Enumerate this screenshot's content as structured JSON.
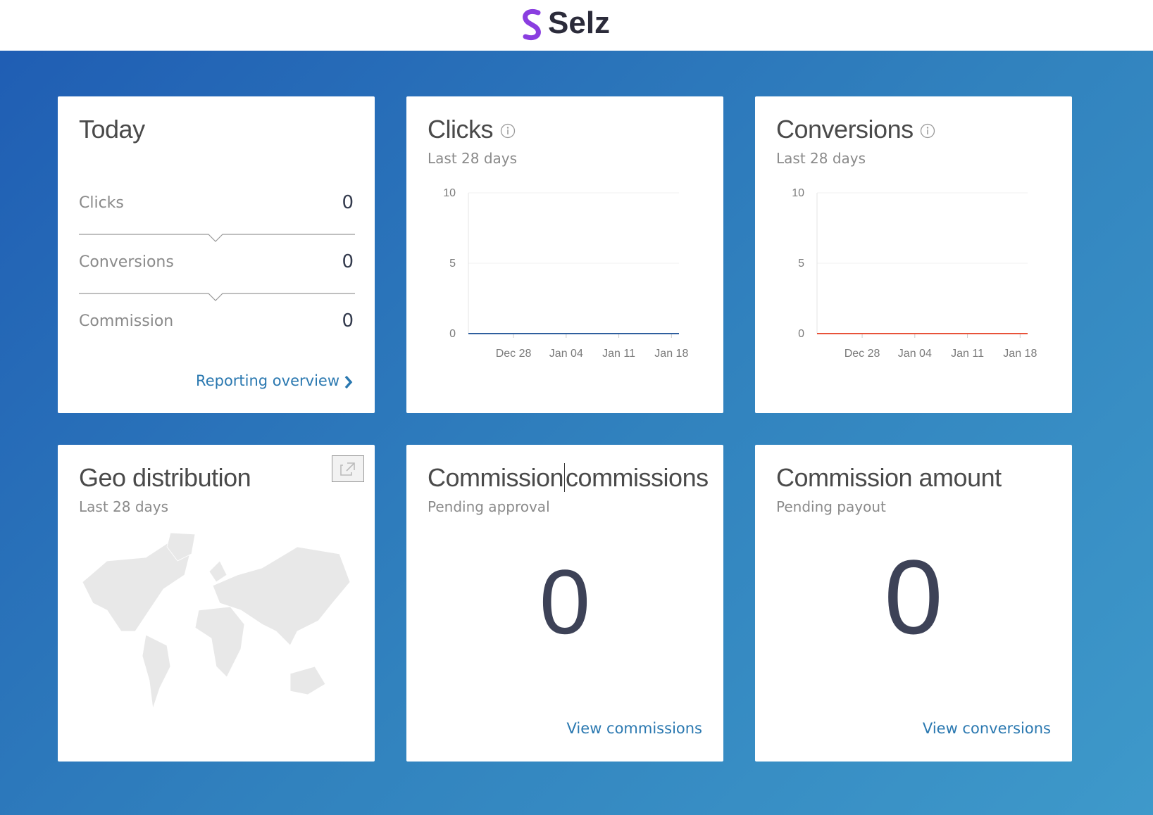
{
  "header": {
    "brand": "Selz"
  },
  "today": {
    "title": "Today",
    "rows": [
      {
        "label": "Clicks",
        "value": 0
      },
      {
        "label": "Conversions",
        "value": 0
      },
      {
        "label": "Commission",
        "value": 0
      }
    ],
    "link": "Reporting overview"
  },
  "chart_data": [
    {
      "type": "line",
      "title": "Clicks",
      "subtitle": "Last 28 days",
      "categories": [
        null,
        null,
        null,
        null,
        null,
        null,
        "Dec 28",
        null,
        null,
        null,
        null,
        null,
        null,
        "Jan 04",
        null,
        null,
        null,
        null,
        null,
        null,
        "Jan 11",
        null,
        null,
        null,
        null,
        null,
        null,
        "Jan 18",
        null
      ],
      "series": [
        {
          "name": "Clicks",
          "color": "#2f5f9e",
          "values": [
            0,
            0,
            0,
            0,
            0,
            0,
            0,
            0,
            0,
            0,
            0,
            0,
            0,
            0,
            0,
            0,
            0,
            0,
            0,
            0,
            0,
            0,
            0,
            0,
            0,
            0,
            0,
            0,
            0
          ]
        }
      ],
      "ylim": [
        0,
        10
      ],
      "yticks": [
        0,
        5,
        10
      ],
      "grid": true
    },
    {
      "type": "line",
      "title": "Conversions",
      "subtitle": "Last 28 days",
      "categories": [
        null,
        null,
        null,
        null,
        null,
        null,
        "Dec 28",
        null,
        null,
        null,
        null,
        null,
        null,
        "Jan 04",
        null,
        null,
        null,
        null,
        null,
        null,
        "Jan 11",
        null,
        null,
        null,
        null,
        null,
        null,
        "Jan 18",
        null
      ],
      "series": [
        {
          "name": "Conversions",
          "color": "#e8533a",
          "values": [
            0,
            0,
            0,
            0,
            0,
            0,
            0,
            0,
            0,
            0,
            0,
            0,
            0,
            0,
            0,
            0,
            0,
            0,
            0,
            0,
            0,
            0,
            0,
            0,
            0,
            0,
            0,
            0,
            0
          ]
        }
      ],
      "ylim": [
        0,
        10
      ],
      "yticks": [
        0,
        5,
        10
      ],
      "grid": true
    }
  ],
  "geo": {
    "title": "Geo distribution",
    "subtitle": "Last 28 days"
  },
  "commissions": {
    "title_parts": [
      "Commission",
      "commissions"
    ],
    "subtitle": "Pending approval",
    "value": 0,
    "link": "View commissions"
  },
  "amount": {
    "title": "Commission amount",
    "subtitle": "Pending payout",
    "value": 0,
    "link": "View conversions"
  }
}
